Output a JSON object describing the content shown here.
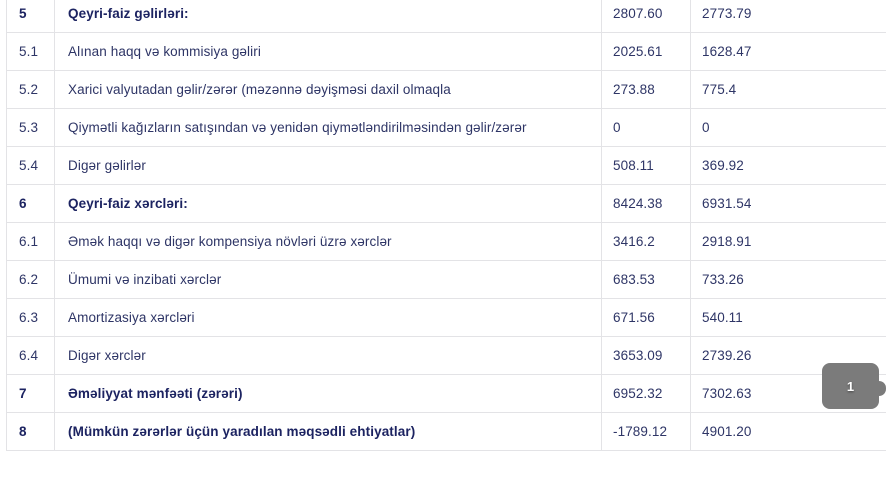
{
  "table": {
    "rows": [
      {
        "no": "5",
        "label": "Qeyri-faiz gəlirləri:",
        "bold": true,
        "value1": "2807.60",
        "value2": "2773.79"
      },
      {
        "no": "5.1",
        "label": "Alınan haqq və kommisiya gəliri",
        "bold": false,
        "value1": "2025.61",
        "value2": "1628.47"
      },
      {
        "no": "5.2",
        "label": "Xarici valyutadan gəlir/zərər (məzənnə dəyişməsi daxil olmaqla",
        "bold": false,
        "value1": "273.88",
        "value2": "775.4"
      },
      {
        "no": "5.3",
        "label": "Qiymətli kağızların satışından və yenidən qiymətləndirilməsindən gəlir/zərər",
        "bold": false,
        "value1": "0",
        "value2": "0"
      },
      {
        "no": "5.4",
        "label": "Digər gəlirlər",
        "bold": false,
        "value1": "508.11",
        "value2": "369.92"
      },
      {
        "no": "6",
        "label": "Qeyri-faiz xərcləri:",
        "bold": true,
        "value1": "8424.38",
        "value2": "6931.54"
      },
      {
        "no": "6.1",
        "label": "Əmək haqqı və digər kompensiya növləri üzrə xərclər",
        "bold": false,
        "value1": "3416.2",
        "value2": "2918.91"
      },
      {
        "no": "6.2",
        "label": "Ümumi və inzibati xərclər",
        "bold": false,
        "value1": "683.53",
        "value2": "733.26"
      },
      {
        "no": "6.3",
        "label": "Amortizasiya xərcləri",
        "bold": false,
        "value1": "671.56",
        "value2": "540.11"
      },
      {
        "no": "6.4",
        "label": "Digər xərclər",
        "bold": false,
        "value1": "3653.09",
        "value2": "2739.26"
      },
      {
        "no": "7",
        "label": "Əməliyyat mənfəəti (zərəri)",
        "bold": true,
        "value1": "6952.32",
        "value2": "7302.63"
      },
      {
        "no": "8",
        "label": "(Mümkün zərərlər üçün yaradılan məqsədli ehtiyatlar)",
        "bold": true,
        "value1": "-1789.12",
        "value2": "4901.20"
      }
    ]
  },
  "scroll_indicator": {
    "page_label": "1"
  },
  "colors": {
    "text_regular": "#2e3566",
    "text_bold": "#1c2361",
    "row_border": "#e3e3e6",
    "badge_background": "#7b7b7b",
    "badge_text": "#ffffff"
  }
}
